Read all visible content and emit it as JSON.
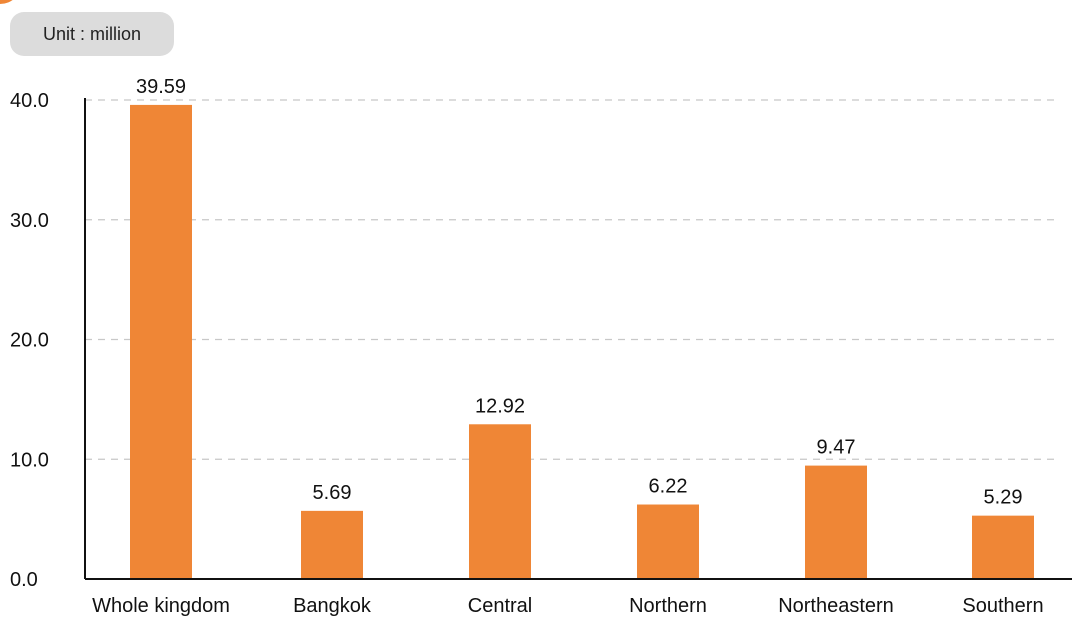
{
  "unit_label": "Unit : million",
  "chart_data": {
    "type": "bar",
    "categories": [
      "Whole kingdom",
      "Bangkok",
      "Central",
      "Northern",
      "Northeastern",
      "Southern"
    ],
    "values": [
      39.59,
      5.69,
      12.92,
      6.22,
      9.47,
      5.29
    ],
    "value_labels": [
      "39.59",
      "5.69",
      "12.92",
      "6.22",
      "9.47",
      "5.29"
    ],
    "title": "",
    "xlabel": "",
    "ylabel": "",
    "ylim": [
      0,
      40
    ],
    "yticks": [
      0,
      10,
      20,
      30,
      40
    ],
    "ytick_labels": [
      "0.0",
      "10.0",
      "20.0",
      "30.0",
      "40.0"
    ],
    "grid": "horizontal dashed",
    "legend": "none",
    "bar_color": "#ef8636",
    "grid_color": "#c8c8c8",
    "axis_color": "#111111"
  }
}
